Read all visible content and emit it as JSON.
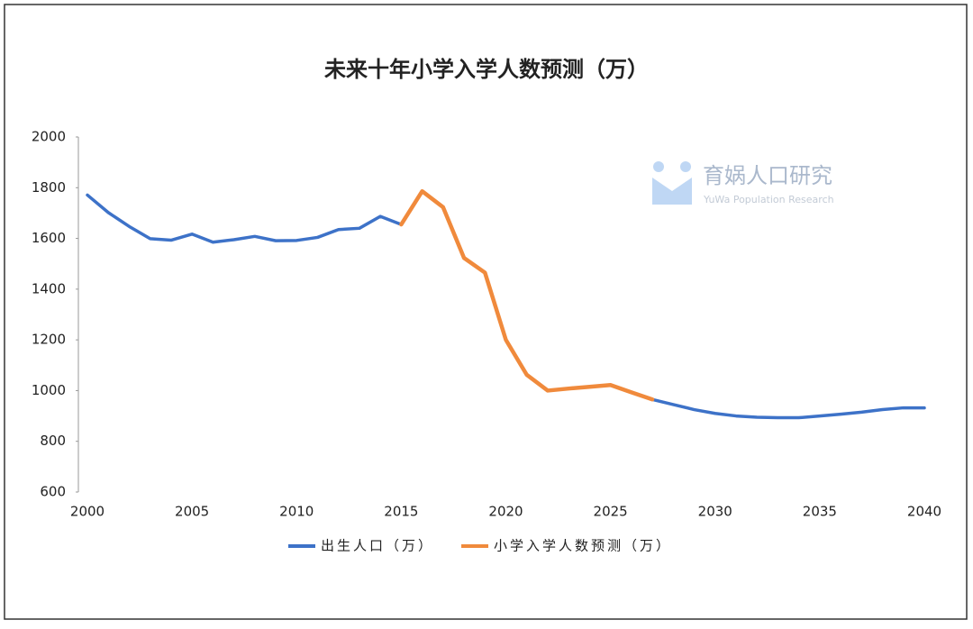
{
  "chart_data": {
    "type": "line",
    "title": "未来十年小学入学人数预测（万）",
    "watermark": {
      "name": "育娲人口研究",
      "subtitle": "YuWa Population Research"
    },
    "x": [
      2000,
      2001,
      2002,
      2003,
      2004,
      2005,
      2006,
      2007,
      2008,
      2009,
      2010,
      2011,
      2012,
      2013,
      2014,
      2015,
      2016,
      2017,
      2018,
      2019,
      2020,
      2021,
      2022,
      2023,
      2024,
      2025,
      2026,
      2027,
      2028,
      2029,
      2030,
      2031,
      2032,
      2033,
      2034,
      2035,
      2036,
      2037,
      2038,
      2039,
      2040
    ],
    "series": [
      {
        "name": "出生人口（万）",
        "color": "#3d72c8",
        "values": [
          1771,
          1702,
          1647,
          1599,
          1593,
          1617,
          1585,
          1595,
          1608,
          1591,
          1592,
          1604,
          1635,
          1640,
          1687,
          1655,
          1786,
          1723,
          1523,
          1465,
          1200,
          1062,
          1000,
          1008,
          1015,
          1022,
          993,
          965,
          945,
          925,
          910,
          900,
          895,
          893,
          893,
          900,
          907,
          915,
          925,
          932,
          932
        ]
      },
      {
        "name": "小学入学人数预测（万）",
        "color": "#f08a3c",
        "values": [
          null,
          null,
          null,
          null,
          null,
          null,
          null,
          null,
          null,
          null,
          null,
          null,
          null,
          null,
          null,
          1655,
          1786,
          1723,
          1523,
          1465,
          1200,
          1062,
          1000,
          1008,
          1015,
          1022,
          993,
          965,
          null,
          null,
          null,
          null,
          null,
          null,
          null,
          null,
          null,
          null,
          null,
          null,
          null
        ]
      }
    ],
    "xlim": [
      2000,
      2040
    ],
    "xticks": [
      2000,
      2005,
      2010,
      2015,
      2020,
      2025,
      2030,
      2035,
      2040
    ],
    "ylim": [
      600,
      2000
    ],
    "yticks": [
      600,
      800,
      1000,
      1200,
      1400,
      1600,
      1800,
      2000
    ],
    "grid": false,
    "legend": "bottom"
  }
}
